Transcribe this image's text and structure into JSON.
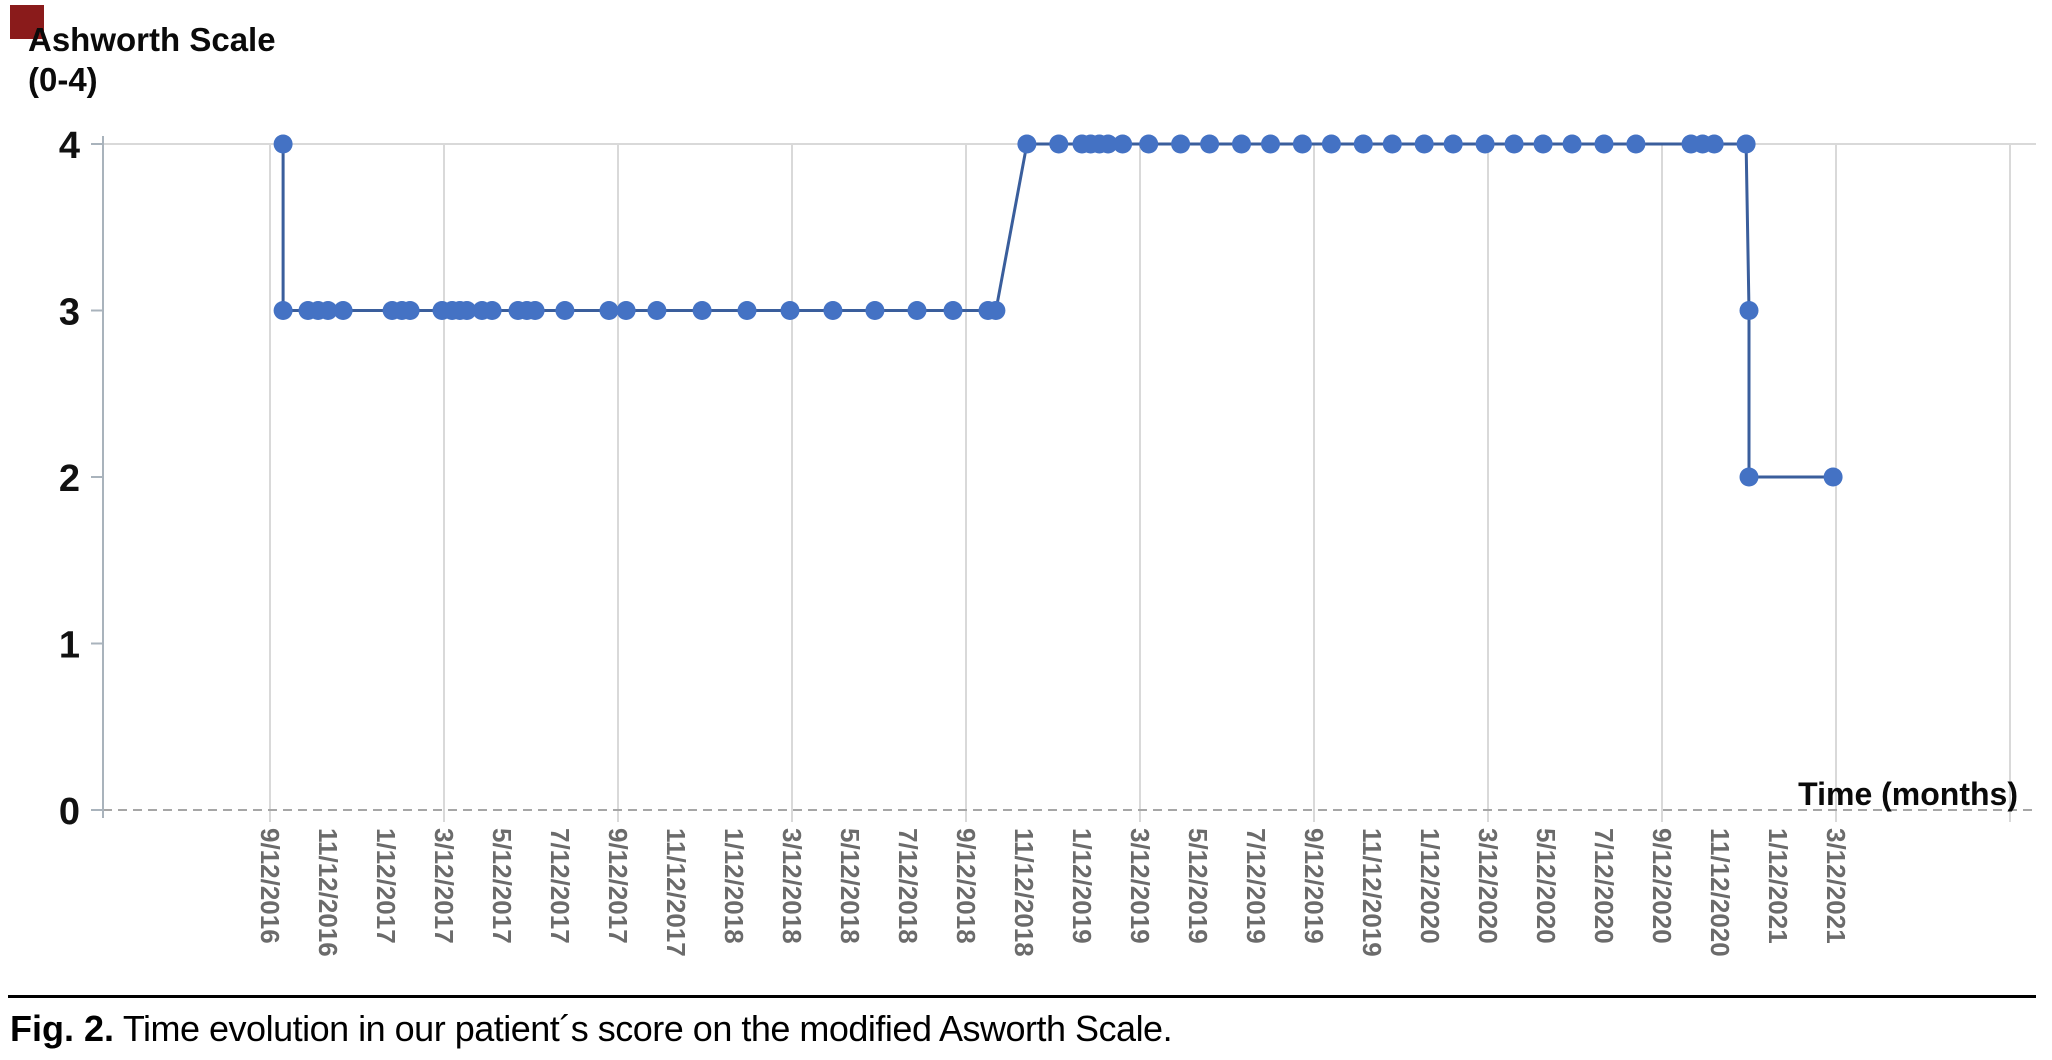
{
  "corner_mark": {
    "color": "#8a1b1b"
  },
  "chart": {
    "title_line1": "Ashworth Scale",
    "title_line2": "(0-4)",
    "x_axis_title": "Time (months)"
  },
  "caption": {
    "label": "Fig. 2.",
    "text": " Time evolution in our patient´s score on the modified Asworth Scale."
  },
  "chart_data": {
    "type": "line",
    "title": "Ashworth Scale (0-4)",
    "ylabel": "Ashworth Scale (0-4)",
    "xlabel": "Time (months)",
    "ylim": [
      0,
      4
    ],
    "y_ticks": [
      4,
      3,
      2,
      1,
      0
    ],
    "x_unit": "months since 9/12/2016 (tick labels every 2 months)",
    "x_tick_labels": [
      "9/12/2016",
      "11/12/2016",
      "1/12/2017",
      "3/12/2017",
      "5/12/2017",
      "7/12/2017",
      "9/12/2017",
      "11/12/2017",
      "1/12/2018",
      "3/12/2018",
      "5/12/2018",
      "7/12/2018",
      "9/12/2018",
      "11/12/2018",
      "1/12/2019",
      "3/12/2019",
      "5/12/2019",
      "7/12/2019",
      "9/12/2019",
      "11/12/2019",
      "1/12/2020",
      "3/12/2020",
      "5/12/2020",
      "7/12/2020",
      "9/12/2020",
      "11/12/2020",
      "1/12/2021",
      "3/12/2021"
    ],
    "gridlines_every_months": 6,
    "grid_on": true,
    "marker_color": "#4472c4",
    "line_color": "#3a5e9c",
    "grid_color": "#d9d9d9",
    "axis_color": "#a9b3bc",
    "zero_line_color": "#a6a6a6",
    "tick_label_color": "#6b6b6b",
    "points": [
      [
        0.45,
        4
      ],
      [
        0.45,
        3
      ],
      [
        1.31,
        3
      ],
      [
        1.66,
        3
      ],
      [
        2.0,
        3
      ],
      [
        2.52,
        3
      ],
      [
        4.21,
        3
      ],
      [
        4.55,
        3
      ],
      [
        4.83,
        3
      ],
      [
        5.93,
        3
      ],
      [
        6.28,
        3
      ],
      [
        6.55,
        3
      ],
      [
        6.79,
        3
      ],
      [
        7.31,
        3
      ],
      [
        7.66,
        3
      ],
      [
        8.55,
        3
      ],
      [
        8.86,
        3
      ],
      [
        9.14,
        3
      ],
      [
        10.17,
        3
      ],
      [
        11.69,
        3
      ],
      [
        12.28,
        3
      ],
      [
        13.34,
        3
      ],
      [
        14.9,
        3
      ],
      [
        16.45,
        3
      ],
      [
        17.93,
        3
      ],
      [
        19.41,
        3
      ],
      [
        20.86,
        3
      ],
      [
        22.31,
        3
      ],
      [
        23.55,
        3
      ],
      [
        24.76,
        3
      ],
      [
        25.03,
        3
      ],
      [
        26.1,
        4
      ],
      [
        27.2,
        4
      ],
      [
        28.0,
        4
      ],
      [
        28.3,
        4
      ],
      [
        28.6,
        4
      ],
      [
        28.9,
        4
      ],
      [
        29.4,
        4
      ],
      [
        30.3,
        4
      ],
      [
        31.4,
        4
      ],
      [
        32.4,
        4
      ],
      [
        33.5,
        4
      ],
      [
        34.5,
        4
      ],
      [
        35.6,
        4
      ],
      [
        36.6,
        4
      ],
      [
        37.7,
        4
      ],
      [
        38.7,
        4
      ],
      [
        39.8,
        4
      ],
      [
        40.8,
        4
      ],
      [
        41.9,
        4
      ],
      [
        42.9,
        4
      ],
      [
        43.9,
        4
      ],
      [
        44.9,
        4
      ],
      [
        46.0,
        4
      ],
      [
        47.1,
        4
      ],
      [
        49.0,
        4
      ],
      [
        49.4,
        4
      ],
      [
        49.8,
        4
      ],
      [
        50.9,
        4
      ],
      [
        51.0,
        3
      ],
      [
        51.0,
        2
      ],
      [
        53.9,
        2
      ]
    ]
  }
}
